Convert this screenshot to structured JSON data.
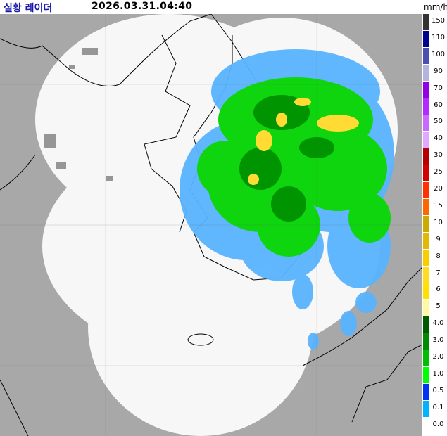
{
  "header": {
    "title": "실황 레이더",
    "timestamp": "2026.03.31.04:40",
    "unit": "mm/h"
  },
  "legend": [
    {
      "label": "150",
      "color": "#333333"
    },
    {
      "label": "110",
      "color": "#000390"
    },
    {
      "label": "100",
      "color": "#4c4eb1"
    },
    {
      "label": "90",
      "color": "#b3b4de"
    },
    {
      "label": "70",
      "color": "#9300e4"
    },
    {
      "label": "60",
      "color": "#b329ff"
    },
    {
      "label": "50",
      "color": "#c969ff"
    },
    {
      "label": "40",
      "color": "#e0a9ff"
    },
    {
      "label": "30",
      "color": "#b40000"
    },
    {
      "label": "25",
      "color": "#d20000"
    },
    {
      "label": "20",
      "color": "#ff3200"
    },
    {
      "label": "15",
      "color": "#ff6600"
    },
    {
      "label": "10",
      "color": "#ccaa00"
    },
    {
      "label": "9",
      "color": "#e0b900"
    },
    {
      "label": "8",
      "color": "#f9cd00"
    },
    {
      "label": "7",
      "color": "#ffdc1f"
    },
    {
      "label": "6",
      "color": "#ffe100"
    },
    {
      "label": "5",
      "color": "#fff9a0"
    },
    {
      "label": "4.0",
      "color": "#005a00"
    },
    {
      "label": "3.0",
      "color": "#008c00"
    },
    {
      "label": "2.0",
      "color": "#00be00"
    },
    {
      "label": "1.0",
      "color": "#00ff00"
    },
    {
      "label": "0.5",
      "color": "#0033f5"
    },
    {
      "label": "0.1",
      "color": "#00b3ff"
    },
    {
      "label": "0.0",
      "color": "#ffffff"
    }
  ],
  "colors": {
    "background": "#a8a8a8",
    "coverage": "#f7f7f7",
    "clutter": "#969696",
    "light_rain": "#5ab4ff",
    "moderate_rain": "#0fd50f",
    "strong_rain": "#009400",
    "heavy_rain": "#ffdb33"
  }
}
